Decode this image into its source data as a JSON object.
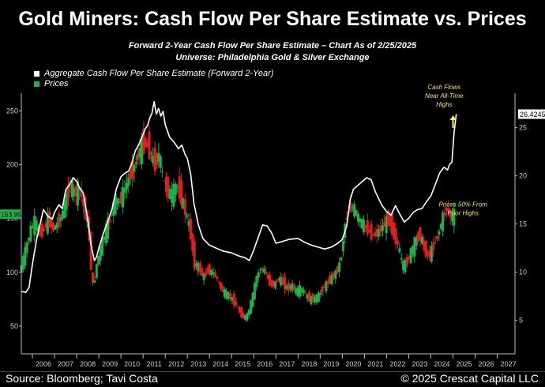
{
  "title": "Gold Miners: Cash Flow Per Share Estimate vs. Prices",
  "subtitle_1": "Forward 2-Year Cash Flow Per Share Estimate – Chart As of 2/25/2025",
  "subtitle_2": "Universe: Philadelphia Gold  & Silver Exchange",
  "footer": {
    "source": "Source: Bloomberg; Tavi Costa",
    "copyright": "© 2025 Crescat Capital LLC"
  },
  "colors": {
    "cashflow_line": "#ffffff",
    "price_up": "#22b04a",
    "price_down": "#e0201e",
    "annotation": "#f2e06a",
    "arrow": "#ffff33"
  },
  "chart_data": {
    "type": "line",
    "title": "Gold Miners: Cash Flow Per Share Estimate vs. Prices",
    "x_ticks": [
      "2006",
      "2007",
      "2008",
      "2009",
      "2010",
      "2011",
      "2012",
      "2013",
      "2014",
      "2015",
      "2016",
      "2017",
      "2018",
      "2019",
      "2020",
      "2021",
      "2022",
      "2023",
      "2024",
      "2025",
      "2026",
      "2027"
    ],
    "x_range": [
      2005.5,
      2027.8
    ],
    "y_left": {
      "ticks": [
        50,
        100,
        150,
        200,
        250
      ],
      "range": [
        25,
        265
      ]
    },
    "y_right": {
      "ticks": [
        5,
        10,
        15,
        20,
        25
      ],
      "range": [
        3,
        28
      ]
    },
    "legend": [
      {
        "label": "Aggregate Cash Flow Per Share Estimate (Forward 2-Year)",
        "color": "#ffffff"
      },
      {
        "label": "Prices",
        "color": "#22b04a"
      }
    ],
    "legend_position": "top-left",
    "last_price_label": "153.99",
    "last_cashflow_label": "26.4245",
    "annotations": [
      {
        "lines": [
          "Cash Flows",
          "Near All-Time",
          "Highs"
        ],
        "x": 2024.6,
        "y_right": 27.5
      },
      {
        "lines": [
          "Prices 50% From",
          "Prior Highs"
        ],
        "x": 2025.45,
        "y_right": 16.8
      }
    ],
    "series": [
      {
        "name": "Aggregate Cash Flow Per Share Estimate (Forward 2-Year)",
        "axis": "right",
        "x": [
          2005.5,
          2005.7,
          2005.85,
          2006.0,
          2006.2,
          2006.35,
          2006.5,
          2006.7,
          2006.9,
          2007.0,
          2007.2,
          2007.35,
          2007.5,
          2007.7,
          2007.85,
          2008.0,
          2008.15,
          2008.3,
          2008.5,
          2008.65,
          2008.8,
          2008.9,
          2009.0,
          2009.2,
          2009.4,
          2009.6,
          2009.8,
          2010.0,
          2010.2,
          2010.35,
          2010.5,
          2010.65,
          2010.8,
          2010.95,
          2011.1,
          2011.2,
          2011.3,
          2011.4,
          2011.5,
          2011.6,
          2011.7,
          2011.8,
          2011.9,
          2012.0,
          2012.2,
          2012.4,
          2012.6,
          2012.75,
          2012.9,
          2013.0,
          2013.15,
          2013.3,
          2013.5,
          2013.7,
          2014.0,
          2014.3,
          2014.6,
          2015.0,
          2015.3,
          2015.6,
          2015.8,
          2016.0,
          2016.2,
          2016.4,
          2016.6,
          2016.8,
          2017.0,
          2017.3,
          2017.6,
          2018.0,
          2018.3,
          2018.6,
          2018.9,
          2019.2,
          2019.5,
          2019.8,
          2020.0,
          2020.2,
          2020.35,
          2020.5,
          2020.7,
          2020.9,
          2021.1,
          2021.3,
          2021.5,
          2021.8,
          2022.0,
          2022.2,
          2022.4,
          2022.6,
          2022.8,
          2023.0,
          2023.2,
          2023.4,
          2023.6,
          2023.8,
          2024.0,
          2024.2,
          2024.4,
          2024.6,
          2024.75,
          2024.85,
          2024.95,
          2025.05,
          2025.15
        ],
        "values": [
          8.0,
          7.9,
          8.4,
          10.8,
          13.5,
          15.0,
          16.5,
          15.8,
          15.5,
          16.2,
          17.0,
          16.6,
          18.5,
          19.2,
          19.8,
          19.4,
          18.7,
          18.2,
          15.5,
          12.8,
          11.2,
          11.6,
          12.5,
          14.0,
          15.2,
          16.6,
          18.7,
          19.9,
          20.3,
          20.5,
          21.3,
          22.6,
          23.2,
          24.0,
          24.9,
          25.2,
          26.0,
          26.5,
          27.7,
          26.4,
          27.0,
          26.2,
          26.7,
          25.3,
          24.0,
          23.5,
          22.8,
          23.2,
          22.2,
          21.8,
          20.2,
          17.1,
          14.9,
          13.5,
          12.8,
          12.5,
          12.2,
          12.0,
          11.7,
          11.5,
          11.2,
          12.3,
          13.6,
          14.9,
          14.8,
          14.1,
          13.0,
          13.2,
          13.4,
          13.5,
          13.1,
          12.8,
          12.6,
          12.4,
          12.6,
          13.0,
          13.4,
          14.8,
          17.5,
          18.6,
          19.0,
          19.4,
          19.8,
          19.6,
          18.3,
          16.9,
          16.3,
          15.9,
          16.9,
          16.0,
          15.2,
          15.6,
          16.2,
          16.5,
          16.6,
          17.3,
          17.9,
          19.1,
          20.3,
          20.9,
          20.6,
          21.2,
          21.4,
          24.5,
          26.4
        ]
      },
      {
        "name": "Prices",
        "axis": "left",
        "x": [
          2005.5,
          2005.7,
          2006.0,
          2006.2,
          2006.4,
          2006.6,
          2006.8,
          2007.0,
          2007.2,
          2007.4,
          2007.6,
          2007.8,
          2008.0,
          2008.2,
          2008.4,
          2008.6,
          2008.8,
          2008.9,
          2009.0,
          2009.2,
          2009.4,
          2009.6,
          2009.8,
          2010.0,
          2010.2,
          2010.4,
          2010.6,
          2010.8,
          2011.0,
          2011.2,
          2011.4,
          2011.6,
          2011.8,
          2012.0,
          2012.2,
          2012.4,
          2012.6,
          2012.8,
          2013.0,
          2013.2,
          2013.4,
          2013.6,
          2013.8,
          2014.0,
          2014.2,
          2014.4,
          2014.6,
          2014.8,
          2015.0,
          2015.2,
          2015.4,
          2015.6,
          2015.8,
          2016.0,
          2016.2,
          2016.4,
          2016.6,
          2016.8,
          2017.0,
          2017.2,
          2017.4,
          2017.6,
          2017.8,
          2018.0,
          2018.2,
          2018.4,
          2018.6,
          2018.8,
          2019.0,
          2019.2,
          2019.4,
          2019.6,
          2019.8,
          2020.0,
          2020.2,
          2020.4,
          2020.6,
          2020.8,
          2021.0,
          2021.2,
          2021.4,
          2021.6,
          2021.8,
          2022.0,
          2022.2,
          2022.4,
          2022.6,
          2022.8,
          2023.0,
          2023.2,
          2023.4,
          2023.6,
          2023.8,
          2024.0,
          2024.2,
          2024.4,
          2024.6,
          2024.8,
          2025.0,
          2025.1
        ],
        "values": [
          100,
          115,
          140,
          148,
          135,
          140,
          150,
          140,
          145,
          152,
          168,
          182,
          172,
          180,
          160,
          145,
          85,
          95,
          110,
          125,
          140,
          150,
          168,
          165,
          175,
          185,
          195,
          205,
          218,
          220,
          212,
          200,
          210,
          185,
          175,
          172,
          182,
          170,
          155,
          140,
          108,
          105,
          95,
          102,
          100,
          95,
          85,
          80,
          78,
          72,
          65,
          58,
          60,
          75,
          95,
          105,
          100,
          90,
          88,
          95,
          90,
          85,
          88,
          82,
          85,
          80,
          75,
          75,
          78,
          85,
          90,
          95,
          100,
          110,
          145,
          160,
          160,
          150,
          145,
          140,
          135,
          135,
          140,
          145,
          150,
          135,
          125,
          105,
          110,
          120,
          130,
          135,
          120,
          115,
          125,
          135,
          150,
          160,
          150,
          154
        ]
      }
    ]
  }
}
